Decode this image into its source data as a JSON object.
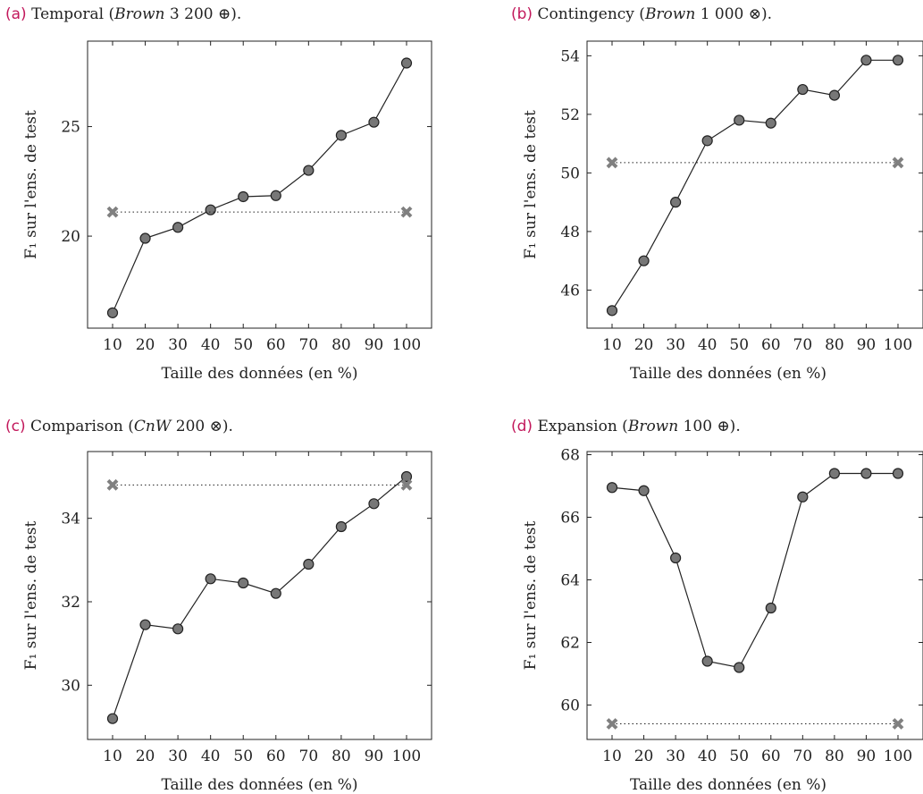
{
  "chart_data": [
    {
      "type": "line",
      "caption": {
        "label": "(a)",
        "pre": "Temporal (",
        "corpus": "Brown",
        "post": " 3 200 ⊕)."
      },
      "xlabel": "Taille des données (en %)",
      "ylabel": "F₁ sur l'ens. de test",
      "x": [
        10,
        20,
        30,
        40,
        50,
        60,
        70,
        80,
        90,
        100
      ],
      "ylim": [
        15.8,
        28.9
      ],
      "yticks": [
        20,
        25
      ],
      "series": [
        {
          "values": [
            16.5,
            19.9,
            20.4,
            21.2,
            21.8,
            21.85,
            23.0,
            24.6,
            25.2,
            27.9
          ],
          "style": "solid",
          "marker": "circle"
        },
        {
          "values": [
            21.1,
            21.1
          ],
          "x": [
            10,
            100
          ],
          "style": "dotted",
          "marker": "x"
        }
      ]
    },
    {
      "type": "line",
      "caption": {
        "label": "(b)",
        "pre": "Contingency (",
        "corpus": "Brown",
        "post": " 1 000 ⊗)."
      },
      "xlabel": "Taille des données (en %)",
      "ylabel": "F₁ sur l'ens. de test",
      "x": [
        10,
        20,
        30,
        40,
        50,
        60,
        70,
        80,
        90,
        100
      ],
      "ylim": [
        44.7,
        54.5
      ],
      "yticks": [
        46,
        48,
        50,
        52,
        54
      ],
      "series": [
        {
          "values": [
            45.3,
            47.0,
            49.0,
            51.1,
            51.8,
            51.7,
            52.85,
            52.65,
            53.85,
            53.85
          ],
          "style": "solid",
          "marker": "circle"
        },
        {
          "values": [
            50.35,
            50.35
          ],
          "x": [
            10,
            100
          ],
          "style": "dotted",
          "marker": "x"
        }
      ]
    },
    {
      "type": "line",
      "caption": {
        "label": "(c)",
        "pre": "Comparison (",
        "corpus": "CnW",
        "post": " 200 ⊗)."
      },
      "xlabel": "Taille des données (en %)",
      "ylabel": "F₁ sur l'ens. de test",
      "x": [
        10,
        20,
        30,
        40,
        50,
        60,
        70,
        80,
        90,
        100
      ],
      "ylim": [
        28.7,
        35.6
      ],
      "yticks": [
        30,
        32,
        34
      ],
      "series": [
        {
          "values": [
            29.2,
            31.45,
            31.35,
            32.55,
            32.45,
            32.2,
            32.9,
            33.8,
            34.35,
            35.0
          ],
          "style": "solid",
          "marker": "circle"
        },
        {
          "values": [
            34.8,
            34.8
          ],
          "x": [
            10,
            100
          ],
          "style": "dotted",
          "marker": "x"
        }
      ]
    },
    {
      "type": "line",
      "caption": {
        "label": "(d)",
        "pre": "Expansion (",
        "corpus": "Brown",
        "post": " 100 ⊕)."
      },
      "xlabel": "Taille des données (en %)",
      "ylabel": "F₁ sur l'ens. de test",
      "x": [
        10,
        20,
        30,
        40,
        50,
        60,
        70,
        80,
        90,
        100
      ],
      "ylim": [
        58.9,
        68.1
      ],
      "yticks": [
        60,
        62,
        64,
        66,
        68
      ],
      "series": [
        {
          "values": [
            66.95,
            66.85,
            64.7,
            61.4,
            61.2,
            63.1,
            66.65,
            67.4,
            67.4,
            67.4
          ],
          "style": "solid",
          "marker": "circle"
        },
        {
          "values": [
            59.4,
            59.4
          ],
          "x": [
            10,
            100
          ],
          "style": "dotted",
          "marker": "x"
        }
      ]
    }
  ]
}
